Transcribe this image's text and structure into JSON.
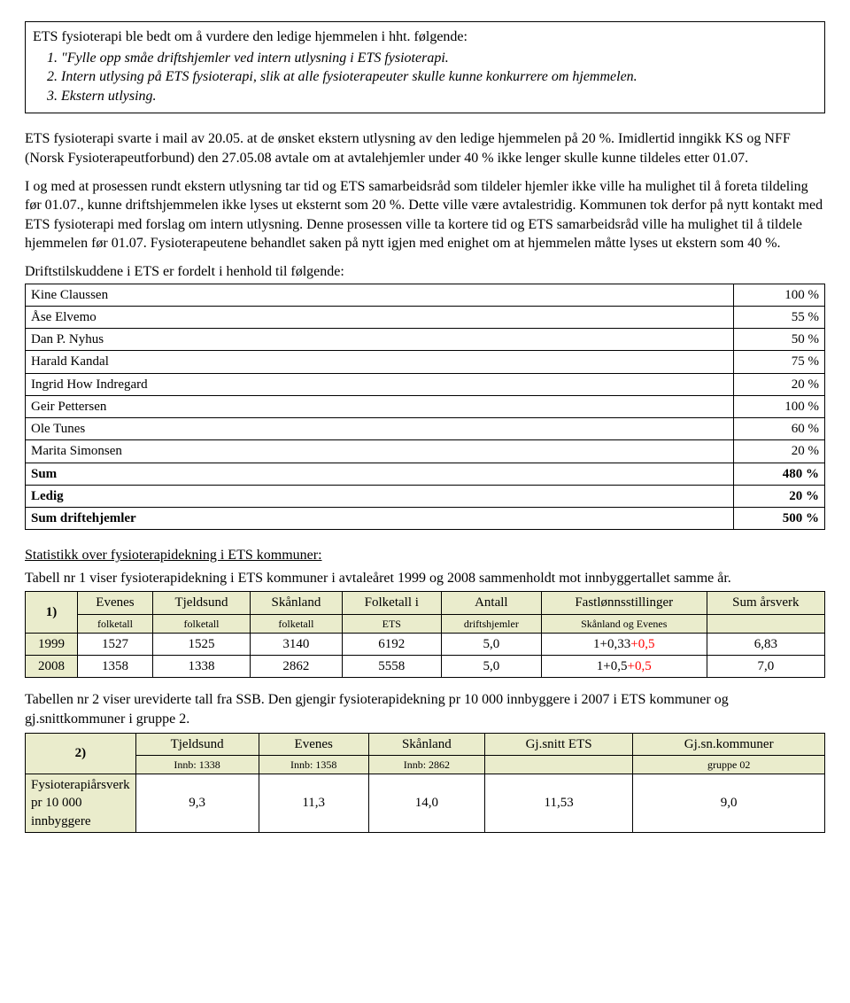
{
  "box": {
    "lead": "ETS fysioterapi ble bedt om å vurdere den ledige hjemmelen i hht. følgende:",
    "items": [
      "\"Fylle opp småe driftshjemler ved intern utlysning i ETS fysioterapi.",
      "Intern utlysing på ETS fysioterapi, slik at alle fysioterapeuter skulle kunne konkurrere om hjemmelen.",
      "Ekstern utlysing."
    ]
  },
  "para1": "ETS fysioterapi svarte i mail av 20.05. at de ønsket ekstern utlysning av den ledige hjemmelen på 20 %. Imidlertid inngikk KS og NFF (Norsk Fysioterapeutforbund) den 27.05.08 avtale om at avtalehjemler under 40 % ikke lenger skulle kunne tildeles etter 01.07.",
  "para2": "I og med at prosessen rundt ekstern utlysning tar tid og ETS samarbeidsråd som tildeler hjemler ikke ville ha mulighet til å foreta tildeling før 01.07., kunne driftshjemmelen ikke lyses ut eksternt som 20 %. Dette ville være avtalestridig. Kommunen tok derfor på nytt kontakt med ETS fysioterapi med forslag om intern utlysning. Denne prosessen ville ta kortere tid og ETS samarbeidsråd ville ha mulighet til å tildele hjemmelen før 01.07. Fysioterapeutene behandlet saken på nytt igjen med enighet om at hjemmelen måtte lyses ut ekstern som 40 %.",
  "drift": {
    "lead": "Driftstilskuddene i ETS er fordelt i henhold til følgende:",
    "rows": [
      {
        "name": "Kine Claussen",
        "pct": "100 %",
        "bold": false
      },
      {
        "name": "Åse Elvemo",
        "pct": "55 %",
        "bold": false
      },
      {
        "name": "Dan P. Nyhus",
        "pct": "50 %",
        "bold": false
      },
      {
        "name": "Harald Kandal",
        "pct": "75 %",
        "bold": false
      },
      {
        "name": "Ingrid How Indregard",
        "pct": "20 %",
        "bold": false
      },
      {
        "name": "Geir Pettersen",
        "pct": "100 %",
        "bold": false
      },
      {
        "name": "Ole Tunes",
        "pct": "60 %",
        "bold": false
      },
      {
        "name": "Marita Simonsen",
        "pct": "20 %",
        "bold": false
      },
      {
        "name": "Sum",
        "pct": "480 %",
        "bold": true
      },
      {
        "name": "Ledig",
        "pct": "20 %",
        "bold": true
      },
      {
        "name": "Sum driftehjemler",
        "pct": "500 %",
        "bold": true
      }
    ]
  },
  "stats": {
    "heading": "Statistikk over fysioterapidekning i ETS kommuner:",
    "t1_intro": "Tabell nr 1 viser fysioterapidekning i ETS kommuner i avtaleåret 1999 og 2008 sammenholdt mot innbyggertallet samme år.",
    "t1": {
      "corner": "1)",
      "head_top": [
        "Evenes",
        "Tjeldsund",
        "Skånland",
        "Folketall i",
        "Antall",
        "Fastlønnsstillinger",
        "Sum årsverk"
      ],
      "head_sub": [
        "folketall",
        "folketall",
        "folketall",
        "ETS",
        "driftshjemler",
        "Skånland og Evenes",
        ""
      ],
      "rows": [
        {
          "year": "1999",
          "cells": [
            "1527",
            "1525",
            "3140",
            "6192",
            "5,0",
            "1+0,33+0,5",
            "6,83"
          ]
        },
        {
          "year": "2008",
          "cells": [
            "1358",
            "1338",
            "2862",
            "5558",
            "5,0",
            "1+0,5+0,5",
            "7,0"
          ]
        }
      ],
      "highlight_color": "#ff0000"
    },
    "t2_intro": "Tabellen nr 2 viser ureviderte tall fra SSB. Den gjengir fysioterapidekning pr 10 000 innbyggere i 2007 i ETS kommuner og gj.snittkommuner i gruppe 2.",
    "t2": {
      "corner": "2)",
      "head_top": [
        "Tjeldsund",
        "Evenes",
        "Skånland",
        "Gj.snitt ETS",
        "Gj.sn.kommuner"
      ],
      "head_sub": [
        "Innb: 1338",
        "Innb: 1358",
        "Innb: 2862",
        "",
        "gruppe 02"
      ],
      "row_label": "Fysioterapiårsverk pr 10 000 innbyggere",
      "row_values": [
        "9,3",
        "11,3",
        "14,0",
        "11,53",
        "9,0"
      ]
    }
  },
  "colors": {
    "table_header_bg": "#eaeccc",
    "border": "#000000",
    "text": "#000000",
    "highlight": "#ff0000"
  }
}
